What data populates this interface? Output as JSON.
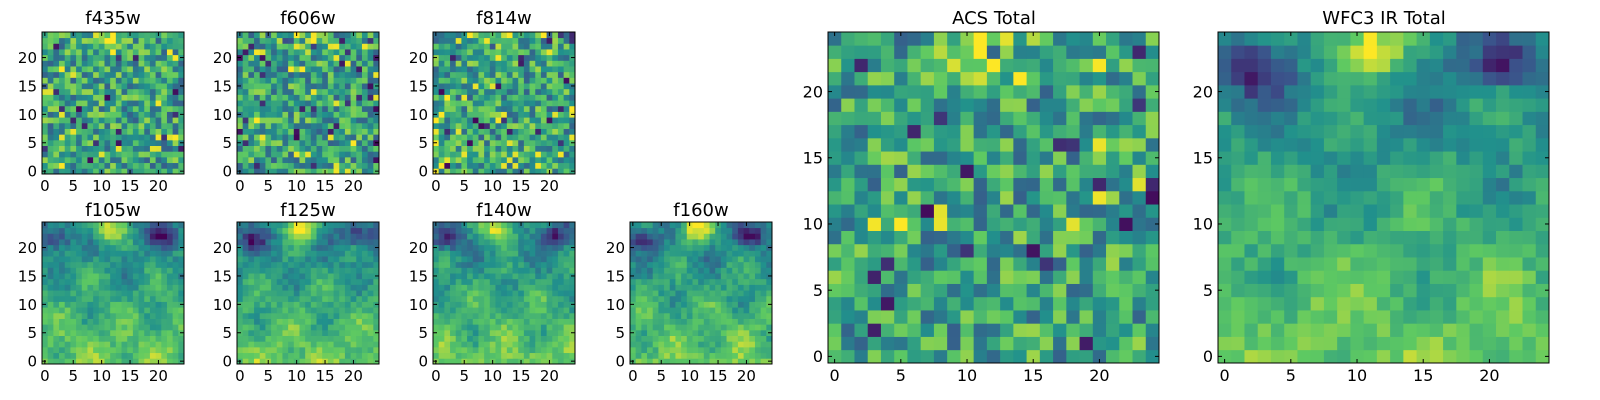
{
  "figure": {
    "colormap_stops": [
      "#440154",
      "#3b528b",
      "#21918c",
      "#5ec962",
      "#fde725"
    ]
  },
  "chart_data": [
    {
      "type": "heatmap",
      "title": "f435w",
      "xlabel": "",
      "ylabel": "",
      "grid_size": [
        25,
        25
      ],
      "xlim": [
        0,
        24
      ],
      "ylim": [
        0,
        24
      ],
      "xticks": [
        0,
        5,
        10,
        15,
        20
      ],
      "yticks": [
        0,
        5,
        10,
        15,
        20
      ],
      "texture": "fine",
      "seed": 11,
      "grid": false,
      "values": []
    },
    {
      "type": "heatmap",
      "title": "f606w",
      "xlabel": "",
      "ylabel": "",
      "grid_size": [
        25,
        25
      ],
      "xlim": [
        0,
        24
      ],
      "ylim": [
        0,
        24
      ],
      "xticks": [
        0,
        5,
        10,
        15,
        20
      ],
      "yticks": [
        0,
        5,
        10,
        15,
        20
      ],
      "texture": "fine",
      "seed": 23,
      "grid": false,
      "values": []
    },
    {
      "type": "heatmap",
      "title": "f814w",
      "xlabel": "",
      "ylabel": "",
      "grid_size": [
        25,
        25
      ],
      "xlim": [
        0,
        24
      ],
      "ylim": [
        0,
        24
      ],
      "xticks": [
        0,
        5,
        10,
        15,
        20
      ],
      "yticks": [
        0,
        5,
        10,
        15,
        20
      ],
      "texture": "fine",
      "seed": 37,
      "grid": false,
      "values": []
    },
    {
      "type": "heatmap",
      "title": "f105w",
      "xlabel": "",
      "ylabel": "",
      "grid_size": [
        25,
        25
      ],
      "xlim": [
        0,
        24
      ],
      "ylim": [
        0,
        24
      ],
      "xticks": [
        0,
        5,
        10,
        15,
        20
      ],
      "yticks": [
        0,
        5,
        10,
        15,
        20
      ],
      "texture": "smooth",
      "seed": 41,
      "grid": false,
      "values": []
    },
    {
      "type": "heatmap",
      "title": "f125w",
      "xlabel": "",
      "ylabel": "",
      "grid_size": [
        25,
        25
      ],
      "xlim": [
        0,
        24
      ],
      "ylim": [
        0,
        24
      ],
      "xticks": [
        0,
        5,
        10,
        15,
        20
      ],
      "yticks": [
        0,
        5,
        10,
        15,
        20
      ],
      "texture": "smooth",
      "seed": 53,
      "grid": false,
      "values": []
    },
    {
      "type": "heatmap",
      "title": "f140w",
      "xlabel": "",
      "ylabel": "",
      "grid_size": [
        25,
        25
      ],
      "xlim": [
        0,
        24
      ],
      "ylim": [
        0,
        24
      ],
      "xticks": [
        0,
        5,
        10,
        15,
        20
      ],
      "yticks": [
        0,
        5,
        10,
        15,
        20
      ],
      "texture": "smooth",
      "seed": 67,
      "grid": false,
      "values": []
    },
    {
      "type": "heatmap",
      "title": "f160w",
      "xlabel": "",
      "ylabel": "",
      "grid_size": [
        25,
        25
      ],
      "xlim": [
        0,
        24
      ],
      "ylim": [
        0,
        24
      ],
      "xticks": [
        0,
        5,
        10,
        15,
        20
      ],
      "yticks": [
        0,
        5,
        10,
        15,
        20
      ],
      "texture": "smooth",
      "seed": 79,
      "grid": false,
      "values": []
    },
    {
      "type": "heatmap",
      "title": "ACS Total",
      "xlabel": "",
      "ylabel": "",
      "grid_size": [
        25,
        25
      ],
      "xlim": [
        0,
        24
      ],
      "ylim": [
        0,
        24
      ],
      "xticks": [
        0,
        5,
        10,
        15,
        20
      ],
      "yticks": [
        0,
        5,
        10,
        15,
        20
      ],
      "texture": "fine",
      "seed": 83,
      "grid": false,
      "values": []
    },
    {
      "type": "heatmap",
      "title": "WFC3 IR Total",
      "xlabel": "",
      "ylabel": "",
      "grid_size": [
        25,
        25
      ],
      "xlim": [
        0,
        24
      ],
      "ylim": [
        0,
        24
      ],
      "xticks": [
        0,
        5,
        10,
        15,
        20
      ],
      "yticks": [
        0,
        5,
        10,
        15,
        20
      ],
      "texture": "smooth",
      "seed": 97,
      "grid": false,
      "values": []
    }
  ]
}
